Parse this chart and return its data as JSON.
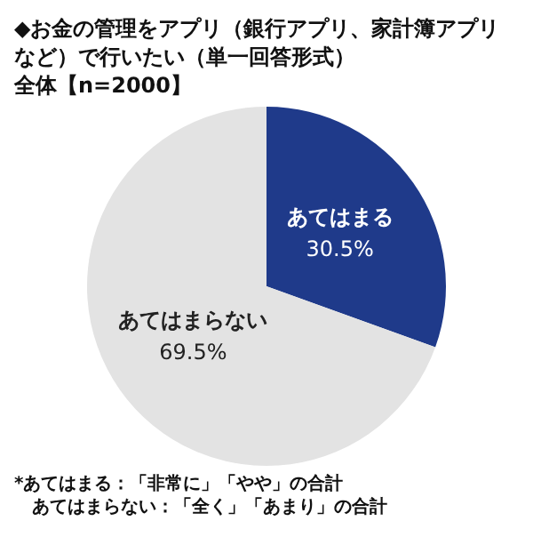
{
  "chart_data": {
    "type": "pie",
    "title": "◆お金の管理をアプリ（銀行アプリ、家計簿アプリなど）で行いたい（単一回答形式）",
    "subtitle": "全体【n=2000】",
    "categories": [
      "あてはまる",
      "あてはまらない"
    ],
    "values": [
      30.5,
      69.5
    ],
    "value_labels": [
      "30.5%",
      "69.5%"
    ],
    "colors": [
      "#1f3a8a",
      "#e3e3e3"
    ],
    "legend": false,
    "annotations": [
      "*あてはまる：「非常に」「やや」の合計",
      "あてはまらない：「全く」「あまり」の合計"
    ]
  }
}
